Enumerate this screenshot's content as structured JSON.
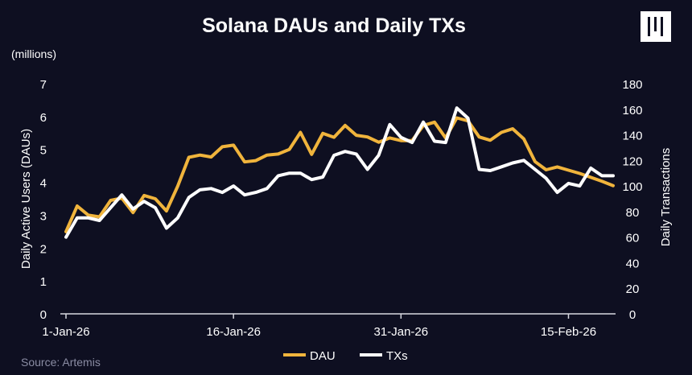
{
  "chart_data": {
    "type": "line",
    "title": "Solana DAUs and Daily TXs",
    "unit_label": "(millions)",
    "ylabel_left": "Daily Active Users (DAUs)",
    "ylabel_right": "Daily Transactions",
    "ylim_left": [
      0,
      7
    ],
    "ylim_right": [
      0,
      180
    ],
    "yticks_left": [
      "0",
      "1",
      "2",
      "3",
      "4",
      "5",
      "6",
      "7"
    ],
    "yticks_right": [
      "0",
      "20",
      "40",
      "60",
      "80",
      "100",
      "120",
      "140",
      "160",
      "180"
    ],
    "x_tick_labels": [
      "1-Jan-26",
      "16-Jan-26",
      "31-Jan-26",
      "15-Feb-26"
    ],
    "x": [
      "2026-01-01",
      "2026-01-02",
      "2026-01-03",
      "2026-01-04",
      "2026-01-05",
      "2026-01-06",
      "2026-01-07",
      "2026-01-08",
      "2026-01-09",
      "2026-01-10",
      "2026-01-11",
      "2026-01-12",
      "2026-01-13",
      "2026-01-14",
      "2026-01-15",
      "2026-01-16",
      "2026-01-17",
      "2026-01-18",
      "2026-01-19",
      "2026-01-20",
      "2026-01-21",
      "2026-01-22",
      "2026-01-23",
      "2026-01-24",
      "2026-01-25",
      "2026-01-26",
      "2026-01-27",
      "2026-01-28",
      "2026-01-29",
      "2026-01-30",
      "2026-01-31",
      "2026-02-01",
      "2026-02-02",
      "2026-02-03",
      "2026-02-04",
      "2026-02-05",
      "2026-02-06",
      "2026-02-07",
      "2026-02-08",
      "2026-02-09",
      "2026-02-10",
      "2026-02-11",
      "2026-02-12",
      "2026-02-13",
      "2026-02-14",
      "2026-02-15",
      "2026-02-16",
      "2026-02-17",
      "2026-02-18",
      "2026-02-19"
    ],
    "series": [
      {
        "name": "DAU",
        "axis": "left",
        "color": "#f0b43c",
        "values": [
          2.5,
          3.28,
          3.0,
          2.95,
          3.45,
          3.52,
          3.08,
          3.6,
          3.5,
          3.13,
          3.88,
          4.76,
          4.83,
          4.77,
          5.08,
          5.13,
          4.62,
          4.66,
          4.83,
          4.86,
          5.0,
          5.52,
          4.85,
          5.49,
          5.37,
          5.73,
          5.43,
          5.38,
          5.22,
          5.35,
          5.27,
          5.27,
          5.73,
          5.83,
          5.35,
          5.96,
          5.87,
          5.38,
          5.28,
          5.52,
          5.63,
          5.32,
          4.63,
          4.38,
          4.47,
          4.37,
          4.27,
          4.15,
          4.03,
          3.9
        ]
      },
      {
        "name": "TXs",
        "axis": "right",
        "color": "#ffffff",
        "values": [
          60,
          75,
          75,
          73,
          83,
          93,
          82,
          88,
          83,
          67,
          75,
          91,
          97,
          98,
          95,
          100,
          93,
          95,
          98,
          108,
          110,
          110,
          105,
          107,
          124,
          127,
          125,
          113,
          124,
          148,
          138,
          134,
          150,
          135,
          134,
          161,
          153,
          113,
          112,
          115,
          118,
          120,
          113,
          106,
          95,
          102,
          100,
          114,
          108,
          108
        ]
      }
    ],
    "legend_position": "bottom",
    "grid": false
  },
  "source": "Source: Artemis"
}
